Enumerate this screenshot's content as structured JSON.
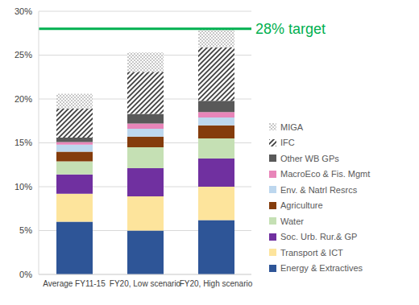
{
  "chart_data": {
    "type": "bar",
    "stacked": true,
    "grid": true,
    "legend": "right",
    "categories": [
      "Average FY11-15",
      "FY20, Low scenario",
      "FY20, High scenario"
    ],
    "ylim": [
      0,
      30
    ],
    "yticks": [
      {
        "value": 0,
        "label": "0%"
      },
      {
        "value": 5,
        "label": "5%"
      },
      {
        "value": 10,
        "label": "10%"
      },
      {
        "value": 15,
        "label": "15%"
      },
      {
        "value": 20,
        "label": "20%"
      },
      {
        "value": 25,
        "label": "25%"
      },
      {
        "value": 30,
        "label": "30%"
      }
    ],
    "annotations": [
      {
        "text": "28% target",
        "y": 28,
        "color": "#00b050"
      }
    ],
    "series": [
      {
        "name": "Energy & Extractives",
        "color": "#2e5597",
        "values": [
          6.0,
          5.0,
          6.2
        ]
      },
      {
        "name": "Transport & ICT",
        "color": "#fde49c",
        "values": [
          3.2,
          3.9,
          3.8
        ]
      },
      {
        "name": "Soc. Urb. Rur.& GP",
        "color": "#7030a0",
        "values": [
          2.2,
          3.2,
          3.2
        ]
      },
      {
        "name": "Water",
        "color": "#c5e0b4",
        "values": [
          1.5,
          2.4,
          2.3
        ]
      },
      {
        "name": "Agriculture",
        "color": "#843c0c",
        "values": [
          1.1,
          1.2,
          1.5
        ]
      },
      {
        "name": "Env. & Natrl Resrcs",
        "color": "#bdd7ee",
        "values": [
          0.8,
          0.9,
          0.9
        ]
      },
      {
        "name": "MacroEco & Fis. Mgmt",
        "color": "#e885b9",
        "values": [
          0.3,
          0.6,
          0.6
        ]
      },
      {
        "name": "Other WB GPs",
        "color": "#595959",
        "values": [
          0.5,
          1.1,
          1.3
        ]
      },
      {
        "name": "IFC",
        "color": "#404040",
        "values": [
          3.3,
          4.8,
          6.1
        ]
      },
      {
        "name": "MIGA",
        "color": "#7f7f7f",
        "values": [
          1.7,
          2.2,
          2.1
        ]
      }
    ]
  }
}
